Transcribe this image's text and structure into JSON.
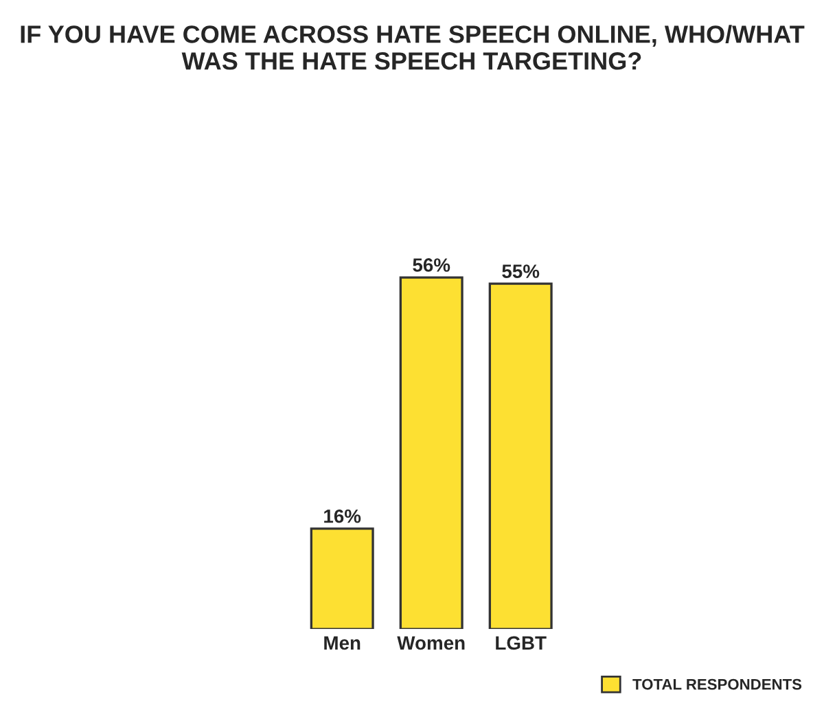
{
  "chart_data": {
    "type": "bar",
    "title": "IF YOU HAVE COME ACROSS HATE SPEECH ONLINE, WHO/WHAT\nWAS THE HATE SPEECH TARGETING?",
    "categories": [
      "Men",
      "Women",
      "LGBT"
    ],
    "series": [
      {
        "name": "TOTAL RESPONDENTS",
        "color": "#fde032",
        "values": [
          16,
          56,
          55
        ],
        "value_labels": [
          "16%",
          "56%",
          "55%"
        ]
      }
    ],
    "tick_labels": "x",
    "grid": false,
    "legend": "bottom right"
  }
}
